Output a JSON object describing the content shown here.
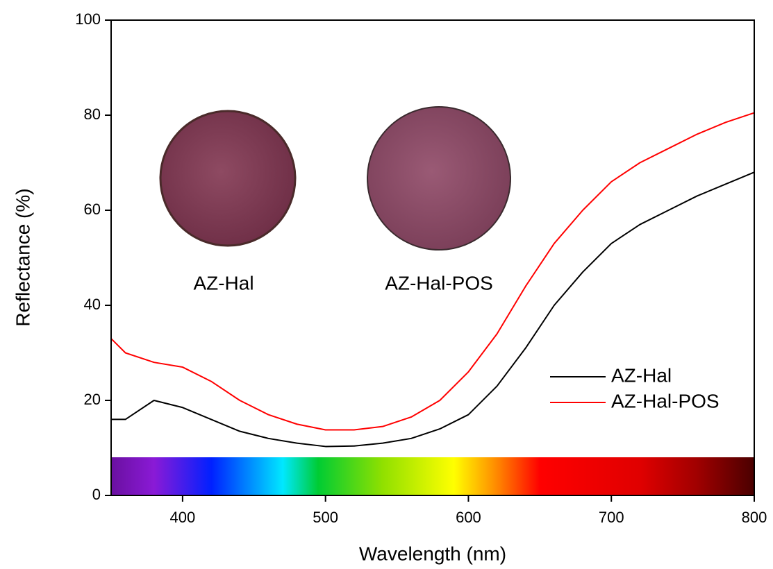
{
  "chart_data": {
    "type": "line",
    "xlabel": "Wavelength (nm)",
    "ylabel": "Reflectance (%)",
    "annotations": [
      "AZ-Hal",
      "AZ-Hal-POS"
    ],
    "x": [
      350,
      360,
      380,
      400,
      420,
      440,
      460,
      480,
      500,
      520,
      540,
      560,
      580,
      600,
      620,
      640,
      660,
      680,
      700,
      720,
      740,
      760,
      780,
      800
    ],
    "series": [
      {
        "name": "AZ-Hal",
        "color": "#000000",
        "values": [
          16,
          16,
          20,
          18.5,
          16,
          13.5,
          12,
          11,
          10.3,
          10.4,
          11,
          12,
          14,
          17,
          23,
          31,
          40,
          47,
          53,
          57,
          60,
          63,
          65.5,
          68
        ]
      },
      {
        "name": "AZ-Hal-POS",
        "color": "#ff0000",
        "values": [
          33,
          30,
          28,
          27,
          24,
          20,
          17,
          15,
          13.8,
          13.8,
          14.5,
          16.5,
          20,
          26,
          34,
          44,
          53,
          60,
          66,
          70,
          73,
          76,
          78.5,
          80.5
        ]
      }
    ],
    "xlim": [
      350,
      800
    ],
    "xticks": [
      400,
      500,
      600,
      700,
      800
    ],
    "ylim": [
      0,
      100
    ],
    "yticks": [
      0,
      20,
      40,
      60,
      80,
      100
    ],
    "grid": false,
    "legend": "lower right"
  }
}
